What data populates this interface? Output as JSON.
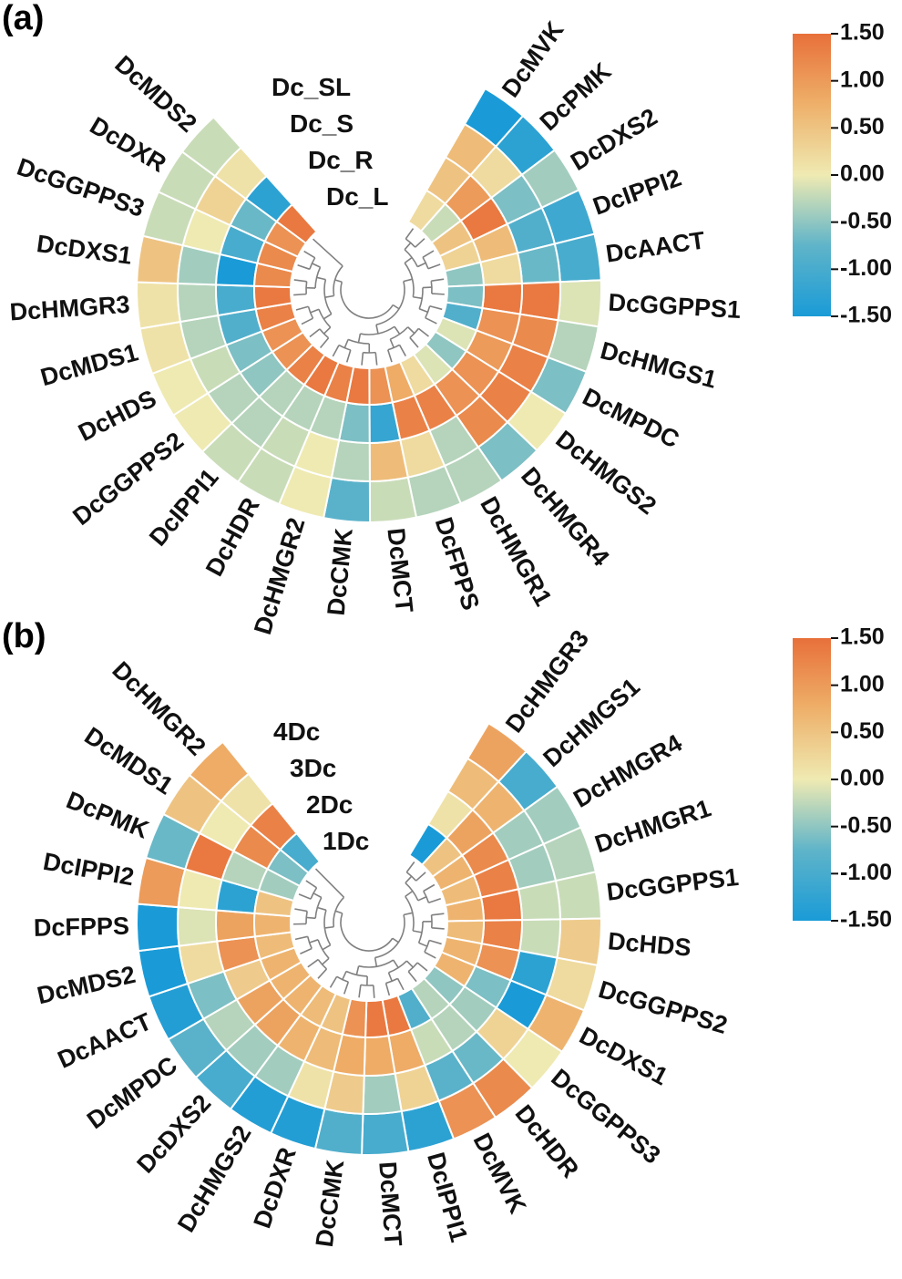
{
  "colors": {
    "low": "#1a9bd7",
    "lowmid": "#5fb4c9",
    "mid": "#efeab2",
    "highmid": "#eeb06a",
    "high": "#e8703a"
  },
  "chart_data": [
    {
      "type": "heatmap",
      "panel_label": "(a)",
      "rings": [
        "Dc_SL",
        "Dc_S",
        "Dc_R",
        "Dc_L"
      ],
      "genes": [
        "DcMVK",
        "DcPMK",
        "DcDXS2",
        "DcIPPI2",
        "DcAACT",
        "DcGGPPS1",
        "DcHMGS1",
        "DcMPDC",
        "DcHMGS2",
        "DcHMGR4",
        "DcHMGR1",
        "DcFPPS",
        "DcMCT",
        "DcCMK",
        "DcHMGR2",
        "DcHDR",
        "DcIPPI1",
        "DcGGPPS2",
        "DcHDS",
        "DcMDS1",
        "DcHMGR3",
        "DcDXS1",
        "DcGGPPS3",
        "DcDXR",
        "DcMDS2"
      ],
      "values_outer_to_inner": [
        [
          -1.5,
          -1.3,
          -0.4,
          -1.1,
          -1.0,
          -0.1,
          -0.3,
          -0.6,
          0.0,
          -0.6,
          -0.3,
          -0.3,
          -0.2,
          -0.8,
          0.0,
          -0.2,
          -0.2,
          0.0,
          0.0,
          0.1,
          0.1,
          0.5,
          -0.2,
          -0.2,
          -0.2
        ],
        [
          0.6,
          0.2,
          -0.6,
          -0.9,
          -0.7,
          1.4,
          1.2,
          1.3,
          1.3,
          1.2,
          -0.3,
          0.2,
          0.6,
          -0.3,
          0.0,
          -0.2,
          -0.3,
          -0.3,
          -0.2,
          -0.3,
          -0.3,
          -0.4,
          0.0,
          0.3,
          0.1
        ],
        [
          0.5,
          1.0,
          1.4,
          0.6,
          0.2,
          1.4,
          1.1,
          1.0,
          1.1,
          1.1,
          1.3,
          1.3,
          -1.2,
          -0.6,
          -0.3,
          -0.3,
          -0.3,
          -0.5,
          -0.6,
          -0.9,
          -1.0,
          -1.5,
          -1.0,
          -0.7,
          -1.3
        ],
        [
          0.2,
          -0.2,
          0.5,
          0.3,
          -0.5,
          -0.6,
          -0.9,
          -0.1,
          -0.5,
          -0.1,
          0.2,
          0.8,
          1.1,
          1.4,
          1.3,
          1.4,
          1.3,
          1.1,
          1.1,
          1.3,
          1.4,
          1.2,
          1.2,
          1.1,
          1.4
        ]
      ],
      "value_range": [
        -1.5,
        1.5
      ],
      "colorbar_ticks": [
        "1.50",
        "1.00",
        "0.50",
        "0.00",
        "-0.50",
        "-1.00",
        "-1.50"
      ]
    },
    {
      "type": "heatmap",
      "panel_label": "(b)",
      "rings": [
        "4Dc",
        "3Dc",
        "2Dc",
        "1Dc"
      ],
      "genes": [
        "DcHMGR3",
        "DcHMGS1",
        "DcHMGR4",
        "DcHMGR1",
        "DcGGPPS1",
        "DcHDS",
        "DcGGPPS2",
        "DcDXS1",
        "DcGGPPS3",
        "DcHDR",
        "DcMVK",
        "DcIPPI1",
        "DcMCT",
        "DcCMK",
        "DcDXR",
        "DcHMGS2",
        "DcDXS2",
        "DcMPDC",
        "DcAACT",
        "DcMDS2",
        "DcFPPS",
        "DcIPPI2",
        "DcPMK",
        "DcMDS1",
        "DcHMGR2"
      ],
      "values_outer_to_inner": [
        [
          0.9,
          -1.0,
          -0.4,
          -0.3,
          -0.2,
          0.4,
          0.2,
          0.7,
          0.0,
          1.2,
          1.1,
          -1.3,
          -1.0,
          -0.9,
          -1.4,
          -1.4,
          -1.0,
          -0.8,
          -1.4,
          -1.5,
          -1.5,
          1.0,
          -0.7,
          0.5,
          0.8
        ],
        [
          0.6,
          0.7,
          -0.4,
          -0.4,
          -0.2,
          -0.2,
          -1.3,
          -1.5,
          0.3,
          -0.7,
          -0.8,
          0.3,
          -0.4,
          0.4,
          0.1,
          -0.4,
          -0.4,
          -0.3,
          -0.6,
          0.2,
          -0.1,
          0.0,
          1.4,
          0.0,
          0.1
        ],
        [
          0.1,
          0.9,
          1.2,
          1.3,
          1.4,
          1.3,
          1.1,
          -0.6,
          -0.4,
          -0.3,
          -0.2,
          0.8,
          0.8,
          0.8,
          0.6,
          0.7,
          0.9,
          0.9,
          0.4,
          1.1,
          0.9,
          -1.3,
          -0.3,
          1.2,
          1.3
        ],
        [
          -1.5,
          0.5,
          0.7,
          0.6,
          0.7,
          0.6,
          0.7,
          0.7,
          -0.5,
          -0.3,
          -0.9,
          1.4,
          1.4,
          1.1,
          0.5,
          0.6,
          0.7,
          0.7,
          0.7,
          0.6,
          0.7,
          0.5,
          -0.4,
          -0.6,
          -1.0
        ]
      ],
      "value_range": [
        -1.5,
        1.5
      ],
      "colorbar_ticks": [
        "1.50",
        "1.00",
        "0.50",
        "0.00",
        "-0.50",
        "-1.00",
        "-1.50"
      ]
    }
  ]
}
